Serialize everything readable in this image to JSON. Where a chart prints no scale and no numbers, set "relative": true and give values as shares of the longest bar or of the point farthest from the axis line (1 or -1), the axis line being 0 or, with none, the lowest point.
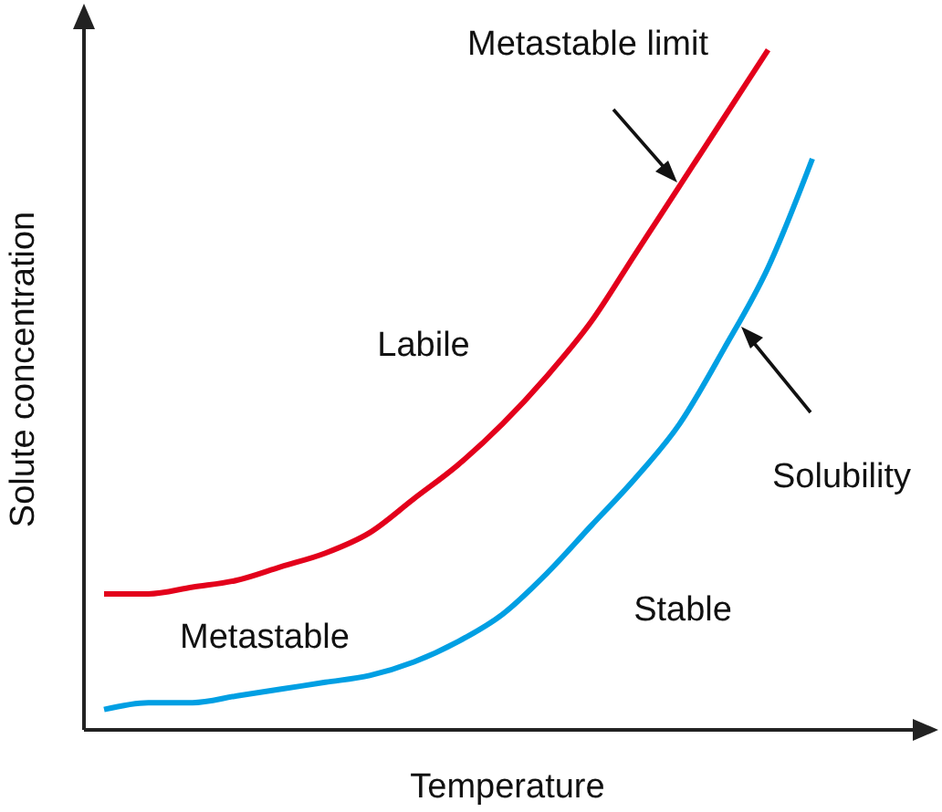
{
  "chart_data": {
    "type": "line",
    "relative": true,
    "xlabel": "Temperature",
    "ylabel": "Solute concentration",
    "categories": [
      null,
      null,
      null,
      null,
      null,
      null,
      null,
      null,
      null,
      null,
      null,
      null,
      null,
      null,
      null,
      null,
      null
    ],
    "series": [
      {
        "name": "Metastable limit",
        "color": "#e3001b",
        "values": [
          0.2,
          0.2,
          0.21,
          0.22,
          0.24,
          0.26,
          0.29,
          0.34,
          0.39,
          0.45,
          0.52,
          0.6,
          0.7,
          0.8,
          0.9,
          1.0,
          null
        ]
      },
      {
        "name": "Solubility",
        "color": "#009fe3",
        "values": [
          0.03,
          0.04,
          0.04,
          0.05,
          0.06,
          0.07,
          0.08,
          0.1,
          0.13,
          0.17,
          0.23,
          0.3,
          0.37,
          0.45,
          0.56,
          0.68,
          0.84
        ]
      }
    ],
    "annotations": [
      "Labile",
      "Metastable",
      "Stable"
    ]
  }
}
